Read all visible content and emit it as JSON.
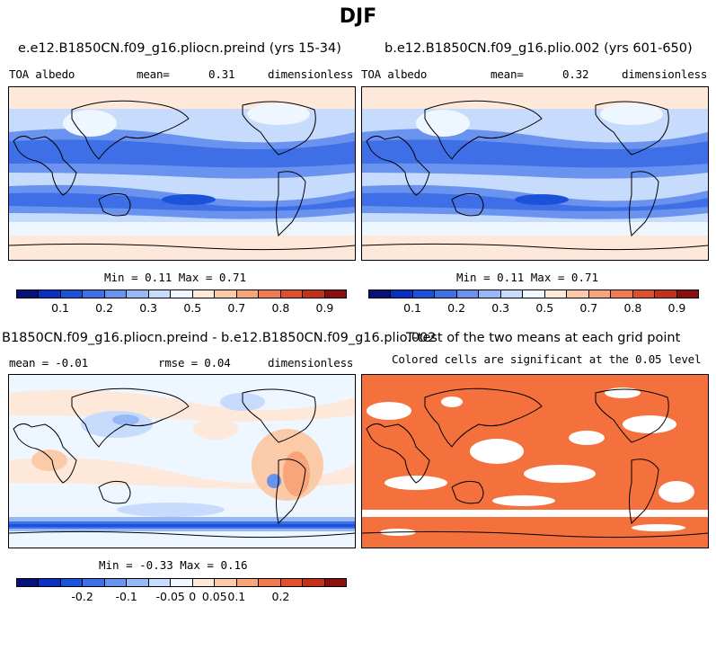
{
  "figure": {
    "title": "DJF"
  },
  "colors": {
    "albedo_scale": [
      "#08107a",
      "#0a2fc2",
      "#1c52d9",
      "#3f6fe6",
      "#6a93f0",
      "#97b8f7",
      "#c7dcfc",
      "#eef6ff",
      "#fde8da",
      "#fbcaa8",
      "#f8a57c",
      "#f07b52",
      "#e0502e",
      "#c3311d",
      "#8b0f0c"
    ],
    "diff_scale": [
      "#08107a",
      "#0a2fc2",
      "#1c52d9",
      "#3f6fe6",
      "#6a93f0",
      "#97b8f7",
      "#c7dcfc",
      "#eef6ff",
      "#fde8da",
      "#fbcaa8",
      "#f8a57c",
      "#f07b52",
      "#e0502e",
      "#c3311d",
      "#8b0f0c"
    ],
    "significance": "#f4703d",
    "coast": "#000000"
  },
  "panel1": {
    "title": "e.e12.B1850CN.f09_g16.pliocn.preind (yrs 15-34)",
    "variable": "TOA albedo",
    "mean_label": "mean=",
    "mean_value": "0.31",
    "units": "dimensionless",
    "minmax": "Min =   0.11 Max =   0.71",
    "ticks": [
      "0.1",
      "0.2",
      "0.3",
      "0.5",
      "0.7",
      "0.8",
      "0.9"
    ]
  },
  "panel2": {
    "title": "b.e12.B1850CN.f09_g16.plio.002 (yrs 601-650)",
    "variable": "TOA albedo",
    "mean_label": "mean=",
    "mean_value": "0.32",
    "units": "dimensionless",
    "minmax": "Min =   0.11 Max =   0.71",
    "ticks": [
      "0.1",
      "0.2",
      "0.3",
      "0.5",
      "0.7",
      "0.8",
      "0.9"
    ]
  },
  "panel3": {
    "title": "B1850CN.f09_g16.pliocn.preind - b.e12.B1850CN.f09_g16.plio.002",
    "mean_text": "mean =  -0.01",
    "rmse_text": "rmse =   0.04",
    "units": "dimensionless",
    "minmax": "Min =  -0.33 Max =   0.16",
    "ticks": [
      "-0.2",
      "-0.1",
      "-0.05",
      "0",
      "0.05",
      "0.1",
      "0.2"
    ]
  },
  "panel4": {
    "title": "T-test of the two means at each grid point",
    "subtitle": "Colored cells are significant at the 0.05 level"
  }
}
